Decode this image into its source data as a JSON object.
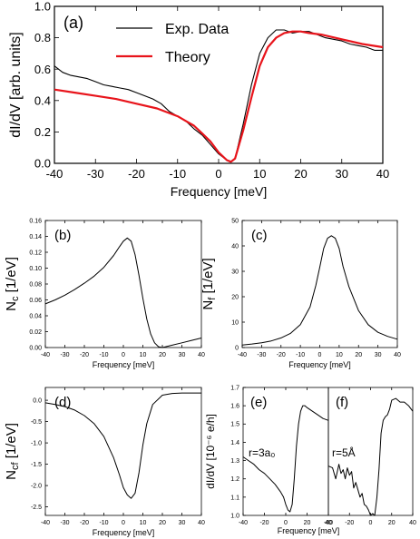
{
  "chart_data": [
    {
      "type": "line",
      "panel_label": "(a)",
      "xlabel": "Frequency [meV]",
      "ylabel": "dI/dV  [arb. units]",
      "xlim": [
        -40,
        40
      ],
      "ylim": [
        0.0,
        1.0
      ],
      "x_ticks": [
        "-40",
        "-30",
        "-20",
        "-10",
        "0",
        "10",
        "20",
        "30",
        "40"
      ],
      "y_ticks": [
        "0.0",
        "0.2",
        "0.4",
        "0.6",
        "0.8",
        "1.0"
      ],
      "legend": {
        "position": "top-center"
      },
      "series": [
        {
          "name": "Exp. Data",
          "color": "#000000",
          "x": [
            -40,
            -38,
            -36,
            -34,
            -32,
            -30,
            -28,
            -26,
            -24,
            -22,
            -20,
            -18,
            -16,
            -14,
            -12,
            -10,
            -8,
            -6,
            -4,
            -2,
            0,
            2,
            3,
            4,
            6,
            8,
            10,
            12,
            14,
            16,
            18,
            20,
            22,
            24,
            26,
            28,
            30,
            32,
            34,
            36,
            38,
            40
          ],
          "y": [
            0.62,
            0.58,
            0.56,
            0.55,
            0.54,
            0.52,
            0.5,
            0.49,
            0.48,
            0.47,
            0.45,
            0.43,
            0.41,
            0.38,
            0.33,
            0.3,
            0.27,
            0.22,
            0.18,
            0.12,
            0.06,
            0.02,
            0.01,
            0.03,
            0.25,
            0.5,
            0.7,
            0.8,
            0.85,
            0.85,
            0.83,
            0.84,
            0.84,
            0.82,
            0.8,
            0.79,
            0.78,
            0.76,
            0.75,
            0.74,
            0.72,
            0.72
          ]
        },
        {
          "name": "Theory",
          "color": "#e8141b",
          "x": [
            -40,
            -35,
            -30,
            -25,
            -20,
            -15,
            -10,
            -8,
            -6,
            -4,
            -2,
            0,
            2,
            3,
            4,
            6,
            8,
            10,
            12,
            14,
            16,
            18,
            20,
            22,
            25,
            30,
            35,
            40
          ],
          "y": [
            0.47,
            0.45,
            0.43,
            0.41,
            0.38,
            0.35,
            0.3,
            0.27,
            0.24,
            0.19,
            0.14,
            0.07,
            0.02,
            0.01,
            0.03,
            0.21,
            0.42,
            0.62,
            0.74,
            0.8,
            0.83,
            0.84,
            0.84,
            0.83,
            0.82,
            0.79,
            0.76,
            0.74
          ]
        }
      ]
    },
    {
      "type": "line",
      "panel_label": "(b)",
      "xlabel": "Frequency [meV]",
      "ylabel_main": "N",
      "ylabel_sub": "c",
      "ylabel_unit": "[1/eV]",
      "xlim": [
        -40,
        40
      ],
      "ylim": [
        0.0,
        0.16
      ],
      "x_ticks": [
        "-40",
        "-30",
        "-20",
        "-10",
        "0",
        "10",
        "20",
        "30",
        "40"
      ],
      "y_ticks": [
        "0.00",
        "0.02",
        "0.04",
        "0.06",
        "0.08",
        "0.10",
        "0.12",
        "0.14",
        "0.16"
      ],
      "series": [
        {
          "x": [
            -40,
            -35,
            -30,
            -25,
            -20,
            -15,
            -10,
            -5,
            -2,
            0,
            2,
            4,
            6,
            8,
            10,
            12,
            14,
            16,
            18,
            20,
            25,
            30,
            35,
            40
          ],
          "y": [
            0.055,
            0.06,
            0.066,
            0.073,
            0.081,
            0.09,
            0.101,
            0.116,
            0.127,
            0.134,
            0.138,
            0.134,
            0.117,
            0.091,
            0.062,
            0.036,
            0.017,
            0.006,
            0.001,
            0.0,
            0.003,
            0.006,
            0.009,
            0.012
          ]
        }
      ]
    },
    {
      "type": "line",
      "panel_label": "(c)",
      "xlabel": "Frequency [meV]",
      "ylabel_main": "N",
      "ylabel_sub": "f",
      "ylabel_unit": "[1/eV]",
      "xlim": [
        -40,
        40
      ],
      "ylim": [
        0,
        50
      ],
      "x_ticks": [
        "-40",
        "-30",
        "-20",
        "-10",
        "0",
        "10",
        "20",
        "30",
        "40"
      ],
      "y_ticks": [
        "0",
        "10",
        "20",
        "30",
        "40",
        "50"
      ],
      "series": [
        {
          "x": [
            -40,
            -35,
            -30,
            -25,
            -20,
            -15,
            -10,
            -5,
            -2,
            0,
            2,
            4,
            6,
            8,
            10,
            12,
            15,
            20,
            25,
            30,
            35,
            40
          ],
          "y": [
            1.0,
            1.4,
            1.9,
            2.6,
            3.8,
            5.6,
            9.0,
            16.0,
            24.5,
            31.6,
            39.0,
            43.0,
            44.0,
            43.0,
            39.0,
            32.0,
            24.0,
            14.5,
            9.0,
            6.0,
            4.4,
            3.3
          ]
        }
      ]
    },
    {
      "type": "line",
      "panel_label": "(d)",
      "xlabel": "Frequency [meV]",
      "ylabel_main": "N",
      "ylabel_sub": "cf",
      "ylabel_unit": "[1/eV]",
      "xlim": [
        -40,
        40
      ],
      "ylim": [
        -2.7,
        0.3
      ],
      "x_ticks": [
        "-40",
        "-30",
        "-20",
        "-10",
        "0",
        "10",
        "20",
        "30",
        "40"
      ],
      "y_ticks": [
        "0.0",
        "-0.5",
        "-1.0",
        "-1.5",
        "-2.0",
        "-2.5"
      ],
      "series": [
        {
          "x": [
            -40,
            -35,
            -30,
            -25,
            -20,
            -15,
            -10,
            -5,
            -2,
            0,
            2,
            4,
            6,
            8,
            10,
            12,
            15,
            20,
            25,
            30,
            35,
            40
          ],
          "y": [
            -0.06,
            -0.1,
            -0.15,
            -0.23,
            -0.36,
            -0.55,
            -0.85,
            -1.35,
            -1.75,
            -2.05,
            -2.22,
            -2.3,
            -2.18,
            -1.7,
            -1.05,
            -0.55,
            -0.1,
            0.12,
            0.16,
            0.17,
            0.17,
            0.17
          ]
        }
      ]
    },
    {
      "type": "line",
      "panel_label": "(e)",
      "xlabel": "",
      "ylabel": "dI/dV  [10⁻⁶ e/h]",
      "annotation": "r=3a₀",
      "xlim": [
        -40,
        40
      ],
      "ylim": [
        1.0,
        1.7
      ],
      "x_ticks": [
        "-40",
        "-20",
        "0",
        "20",
        "40"
      ],
      "y_ticks": [
        "1.0",
        "1.1",
        "1.2",
        "1.3",
        "1.4",
        "1.5",
        "1.6",
        "1.7"
      ],
      "series": [
        {
          "x": [
            -40,
            -35,
            -30,
            -25,
            -20,
            -15,
            -10,
            -5,
            -2,
            0,
            2,
            4,
            6,
            8,
            10,
            12,
            14,
            16,
            18,
            20,
            25,
            30,
            35,
            40
          ],
          "y": [
            1.32,
            1.3,
            1.28,
            1.25,
            1.23,
            1.2,
            1.17,
            1.13,
            1.1,
            1.06,
            1.03,
            1.02,
            1.06,
            1.2,
            1.38,
            1.5,
            1.57,
            1.6,
            1.6,
            1.59,
            1.57,
            1.55,
            1.53,
            1.52
          ]
        }
      ]
    },
    {
      "type": "line",
      "panel_label": "(f)",
      "xlabel": "",
      "annotation": "r=5Å",
      "xlim": [
        -40,
        40
      ],
      "ylim": [
        1.0,
        1.7
      ],
      "x_ticks": [
        "-40",
        "-20",
        "0",
        "20",
        "40"
      ],
      "series": [
        {
          "x": [
            -40,
            -36,
            -33,
            -30,
            -28,
            -26,
            -24,
            -22,
            -20,
            -18,
            -16,
            -14,
            -12,
            -10,
            -8,
            -6,
            -4,
            -2,
            0,
            2,
            4,
            6,
            8,
            10,
            12,
            14,
            16,
            18,
            20,
            24,
            28,
            32,
            36,
            40
          ],
          "y": [
            1.27,
            1.26,
            1.2,
            1.28,
            1.23,
            1.25,
            1.2,
            1.26,
            1.22,
            1.24,
            1.15,
            1.18,
            1.14,
            1.1,
            1.12,
            1.06,
            1.05,
            1.03,
            1.0,
            1.01,
            1.0,
            1.1,
            1.25,
            1.45,
            1.52,
            1.54,
            1.55,
            1.58,
            1.63,
            1.64,
            1.62,
            1.62,
            1.6,
            1.57
          ]
        }
      ]
    }
  ],
  "bottom_xlabel": "Frequency [meV]"
}
